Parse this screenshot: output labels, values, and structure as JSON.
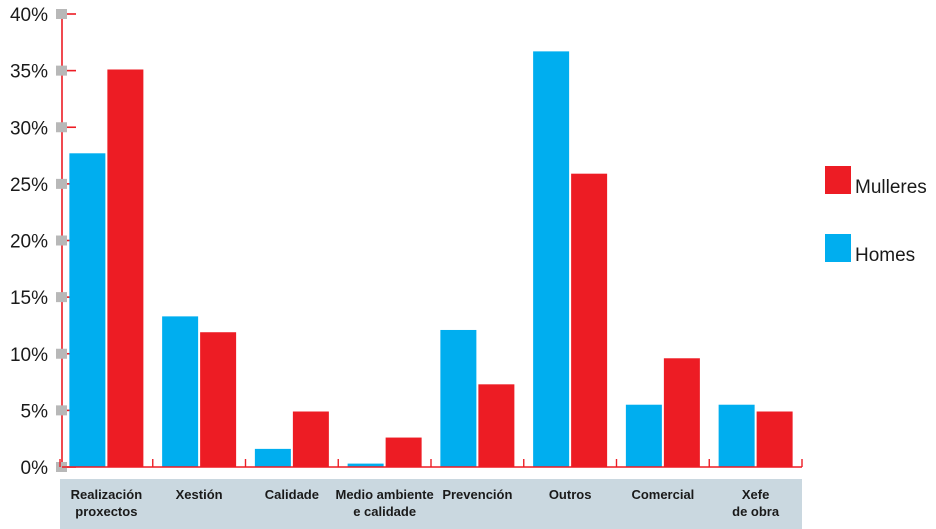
{
  "chart_data": {
    "type": "bar",
    "categories": [
      [
        "Realización",
        "proxectos"
      ],
      [
        "Xestión"
      ],
      [
        "Calidade"
      ],
      [
        "Medio ambiente",
        "e calidade"
      ],
      [
        "Prevención"
      ],
      [
        "Outros"
      ],
      [
        "Comercial"
      ],
      [
        "Xefe",
        "de obra"
      ]
    ],
    "series": [
      {
        "name": "Homes",
        "color": "#00aeef",
        "values": [
          27.7,
          13.3,
          1.6,
          0.3,
          12.1,
          36.7,
          5.5,
          5.5
        ]
      },
      {
        "name": "Mulleres",
        "color": "#ed1c24",
        "values": [
          35.1,
          11.9,
          4.9,
          2.6,
          7.3,
          25.9,
          9.6,
          4.9
        ]
      }
    ],
    "yticks": [
      "0%",
      "5%",
      "10%",
      "15%",
      "20%",
      "25%",
      "30%",
      "35%",
      "40%"
    ],
    "ylim": [
      0,
      40
    ],
    "xlabel": "",
    "ylabel": "",
    "title": "",
    "legend": [
      "Mulleres",
      "Homes"
    ],
    "legend_position": "right",
    "grid": false
  }
}
